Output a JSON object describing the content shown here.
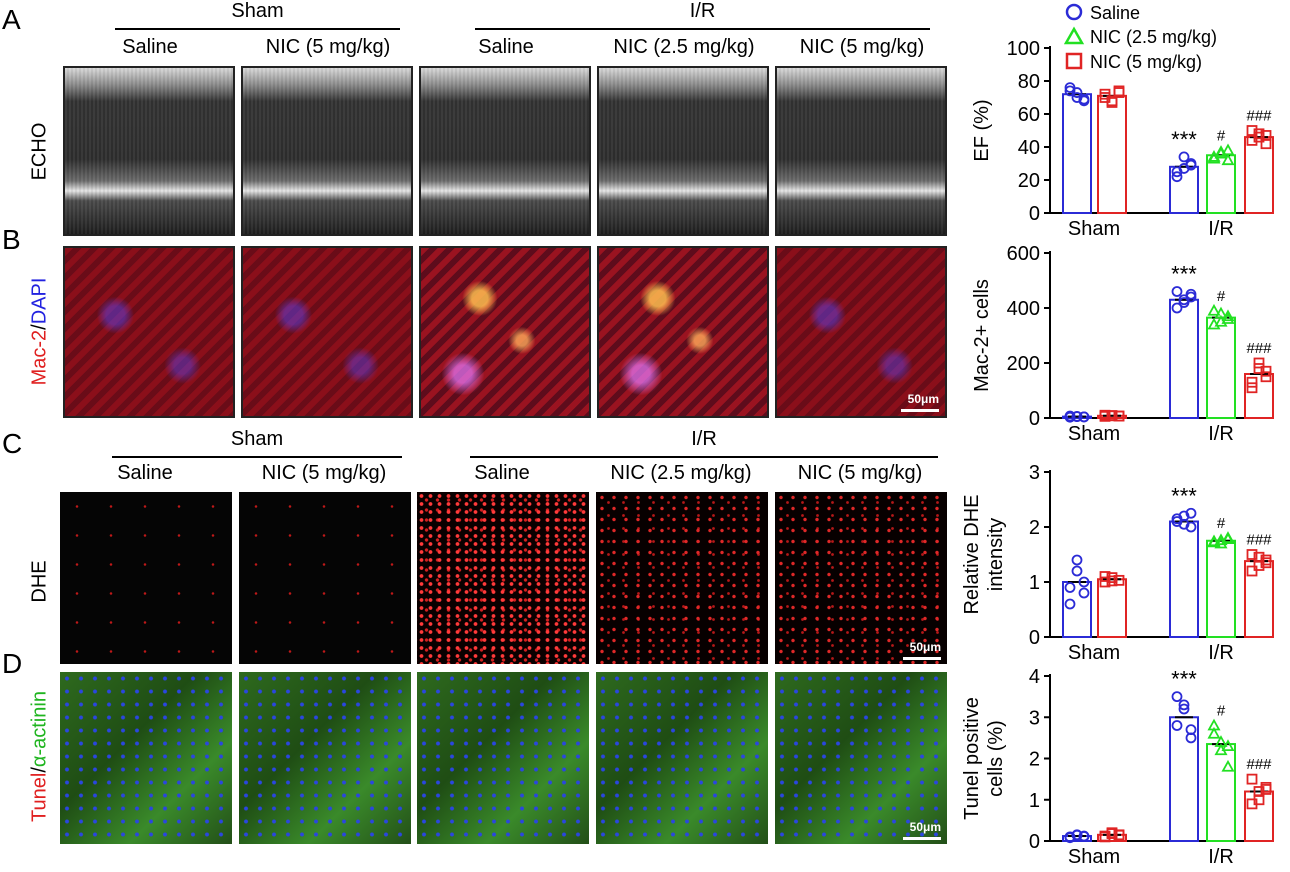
{
  "panels": {
    "A": {
      "letter": "A",
      "row_label": "ECHO"
    },
    "B": {
      "letter": "B",
      "row_label_1": "Mac-2",
      "row_label_sep": "/",
      "row_label_2": "DAPI",
      "scale": "50μm"
    },
    "C": {
      "letter": "C",
      "row_label": "DHE",
      "scale": "50μm"
    },
    "D": {
      "letter": "D",
      "row_label_1": "Tunel",
      "row_label_sep": "/",
      "row_label_2": "α-actinin",
      "scale": "50μm"
    }
  },
  "groups": {
    "sham": "Sham",
    "ir": "I/R"
  },
  "columns": [
    "Saline",
    "NIC (5 mg/kg)",
    "Saline",
    "NIC (2.5 mg/kg)",
    "NIC (5 mg/kg)"
  ],
  "legend": [
    {
      "label": "Saline",
      "color": "#2b2bd6",
      "marker": "circle"
    },
    {
      "label": "NIC (2.5 mg/kg)",
      "color": "#22e022",
      "marker": "triangle"
    },
    {
      "label": "NIC (5 mg/kg)",
      "color": "#e02424",
      "marker": "square"
    }
  ],
  "chart_data": [
    {
      "type": "bar",
      "ylabel": "EF (%)",
      "ylim": [
        0,
        100
      ],
      "yticks": [
        0,
        20,
        40,
        60,
        80,
        100
      ],
      "categories": [
        "Sham",
        "I/R"
      ],
      "series": [
        {
          "name": "Saline",
          "values": [
            72,
            28
          ],
          "points": [
            [
              74,
              70,
              68,
              76,
              73,
              69
            ],
            [
              22,
              27,
              30,
              25,
              34,
              29
            ]
          ],
          "sig": [
            "",
            "***"
          ]
        },
        {
          "name": "NIC (2.5 mg/kg)",
          "values": [
            null,
            35
          ],
          "points": [
            [],
            [
              33,
              36,
              38,
              34,
              37,
              32
            ]
          ],
          "sig": [
            "",
            "#"
          ]
        },
        {
          "name": "NIC (5 mg/kg)",
          "values": [
            71,
            46
          ],
          "points": [
            [
              72,
              68,
              74,
              70,
              67,
              73
            ],
            [
              44,
              48,
              42,
              50,
              46,
              47
            ]
          ],
          "sig": [
            "",
            "###"
          ]
        }
      ]
    },
    {
      "type": "bar",
      "ylabel": "Mac-2+ cells",
      "ylim": [
        0,
        600
      ],
      "yticks": [
        0,
        200,
        400,
        600
      ],
      "categories": [
        "Sham",
        "I/R"
      ],
      "series": [
        {
          "name": "Saline",
          "values": [
            5,
            430
          ],
          "points": [
            [
              3,
              6,
              4,
              7,
              5,
              4
            ],
            [
              460,
              420,
              440,
              400,
              430,
              450
            ]
          ],
          "sig": [
            "",
            "***"
          ]
        },
        {
          "name": "NIC (2.5 mg/kg)",
          "values": [
            null,
            365
          ],
          "points": [
            [],
            [
              340,
              380,
              360,
              390,
              350,
              370
            ]
          ],
          "sig": [
            "",
            "#"
          ]
        },
        {
          "name": "NIC (5 mg/kg)",
          "values": [
            8,
            160
          ],
          "points": [
            [
              6,
              9,
              7,
              10,
              8,
              7
            ],
            [
              110,
              200,
              150,
              130,
              180,
              170
            ]
          ],
          "sig": [
            "",
            "###"
          ]
        }
      ]
    },
    {
      "type": "bar",
      "ylabel": "Relative DHE intensity",
      "ylim": [
        0,
        3
      ],
      "yticks": [
        0,
        1,
        2,
        3
      ],
      "categories": [
        "Sham",
        "I/R"
      ],
      "series": [
        {
          "name": "Saline",
          "values": [
            1.0,
            2.1
          ],
          "points": [
            [
              0.6,
              1.4,
              1.0,
              0.9,
              1.2,
              0.8
            ],
            [
              2.15,
              2.2,
              2.0,
              2.1,
              2.05,
              2.25
            ]
          ],
          "sig": [
            "",
            "***"
          ]
        },
        {
          "name": "NIC (2.5 mg/kg)",
          "values": [
            null,
            1.75
          ],
          "points": [
            [],
            [
              1.72,
              1.76,
              1.78,
              1.74,
              1.7,
              1.8
            ]
          ],
          "sig": [
            "",
            "#"
          ]
        },
        {
          "name": "NIC (5 mg/kg)",
          "values": [
            1.05,
            1.38
          ],
          "points": [
            [
              1.0,
              1.08,
              1.03,
              1.1,
              1.02
            ],
            [
              1.2,
              1.45,
              1.35,
              1.5,
              1.3,
              1.4
            ]
          ],
          "sig": [
            "",
            "###"
          ]
        }
      ]
    },
    {
      "type": "bar",
      "ylabel": "Tunel positive cells (%)",
      "ylim": [
        0,
        4
      ],
      "yticks": [
        0,
        1,
        2,
        3,
        4
      ],
      "categories": [
        "Sham",
        "I/R"
      ],
      "series": [
        {
          "name": "Saline",
          "values": [
            0.12,
            3.0
          ],
          "points": [
            [
              0.1,
              0.15,
              0.12,
              0.08,
              0.14,
              0.11
            ],
            [
              3.5,
              3.2,
              2.5,
              2.8,
              3.3,
              2.7
            ]
          ],
          "sig": [
            "",
            "***"
          ]
        },
        {
          "name": "NIC (2.5 mg/kg)",
          "values": [
            null,
            2.35
          ],
          "points": [
            [],
            [
              2.8,
              2.2,
              1.8,
              2.6,
              2.4,
              2.3
            ]
          ],
          "sig": [
            "",
            "#"
          ]
        },
        {
          "name": "NIC (5 mg/kg)",
          "values": [
            0.15,
            1.2
          ],
          "points": [
            [
              0.1,
              0.2,
              0.15,
              0.12,
              0.18,
              0.14
            ],
            [
              1.5,
              1.0,
              1.3,
              0.9,
              1.2,
              1.25
            ]
          ],
          "sig": [
            "",
            "###"
          ]
        }
      ]
    }
  ]
}
